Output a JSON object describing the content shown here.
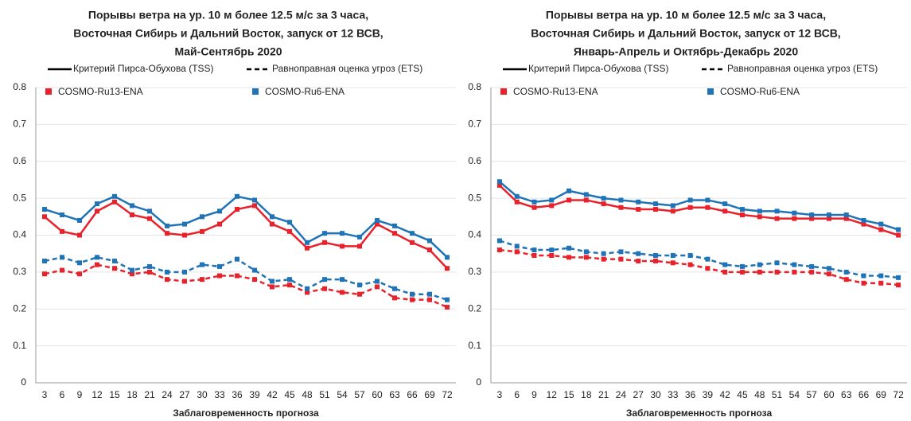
{
  "chart_data": [
    {
      "type": "line",
      "title": [
        "Порывы ветра на ур. 10 м более 12.5 м/с за 3 часа,",
        "Восточная Сибирь и Дальний Восток, запуск от 12 ВСВ,",
        "Май-Сентябрь 2020"
      ],
      "metrics": [
        "Критерий Пирса-Обухова (TSS)",
        "Равноправная оценка угроз (ETS)"
      ],
      "x_label": "Заблаговременность прогноза",
      "categories": [
        3,
        6,
        9,
        12,
        15,
        18,
        21,
        24,
        27,
        30,
        33,
        36,
        39,
        42,
        45,
        48,
        51,
        54,
        57,
        60,
        63,
        66,
        69,
        72
      ],
      "series": [
        {
          "name": "COSMO-Ru13-ENA",
          "color": "#e8212b",
          "values": [
            0.45,
            0.41,
            0.4,
            0.465,
            0.49,
            0.455,
            0.445,
            0.405,
            0.4,
            0.41,
            0.43,
            0.47,
            0.48,
            0.43,
            0.41,
            0.365,
            0.38,
            0.37,
            0.37,
            0.43,
            0.405,
            0.38,
            0.36,
            0.31
          ],
          "values_ets": [
            0.295,
            0.305,
            0.295,
            0.32,
            0.31,
            0.295,
            0.3,
            0.28,
            0.275,
            0.28,
            0.29,
            0.29,
            0.28,
            0.26,
            0.265,
            0.245,
            0.255,
            0.245,
            0.24,
            0.26,
            0.23,
            0.225,
            0.225,
            0.205
          ]
        },
        {
          "name": "COSMO-Ru6-ENA",
          "color": "#1f73b7",
          "values": [
            0.47,
            0.455,
            0.44,
            0.485,
            0.505,
            0.48,
            0.465,
            0.425,
            0.43,
            0.45,
            0.465,
            0.505,
            0.495,
            0.45,
            0.435,
            0.38,
            0.405,
            0.405,
            0.395,
            0.44,
            0.425,
            0.405,
            0.385,
            0.34
          ],
          "values_ets": [
            0.33,
            0.34,
            0.325,
            0.34,
            0.33,
            0.305,
            0.315,
            0.3,
            0.3,
            0.32,
            0.315,
            0.335,
            0.305,
            0.275,
            0.28,
            0.255,
            0.28,
            0.28,
            0.265,
            0.275,
            0.255,
            0.24,
            0.24,
            0.225
          ]
        }
      ],
      "ylim": [
        0,
        0.8
      ],
      "yticks": [
        0,
        0.1,
        0.2,
        0.3,
        0.4,
        0.5,
        0.6,
        0.7,
        0.8
      ],
      "grid": true
    },
    {
      "type": "line",
      "title": [
        "Порывы ветра на ур. 10 м более 12.5 м/с за 3 часа,",
        "Восточная Сибирь и Дальний Восток, запуск от 12 ВСВ,",
        "Январь-Апрель и Октябрь-Декабрь 2020"
      ],
      "metrics": [
        "Критерий Пирса-Обухова (TSS)",
        "Равноправная оценка угроз (ETS)"
      ],
      "x_label": "Заблаговременность прогноза",
      "categories": [
        3,
        6,
        9,
        12,
        15,
        18,
        21,
        24,
        27,
        30,
        33,
        36,
        39,
        42,
        45,
        48,
        51,
        54,
        57,
        60,
        63,
        66,
        69,
        72
      ],
      "series": [
        {
          "name": "COSMO-Ru13-ENA",
          "color": "#e8212b",
          "values": [
            0.535,
            0.49,
            0.475,
            0.48,
            0.495,
            0.495,
            0.485,
            0.475,
            0.47,
            0.47,
            0.465,
            0.475,
            0.475,
            0.465,
            0.455,
            0.45,
            0.445,
            0.445,
            0.445,
            0.445,
            0.445,
            0.43,
            0.415,
            0.4
          ],
          "values_ets": [
            0.36,
            0.355,
            0.345,
            0.345,
            0.34,
            0.34,
            0.335,
            0.335,
            0.33,
            0.33,
            0.325,
            0.32,
            0.31,
            0.3,
            0.3,
            0.3,
            0.3,
            0.3,
            0.3,
            0.295,
            0.28,
            0.27,
            0.27,
            0.265
          ]
        },
        {
          "name": "COSMO-Ru6-ENA",
          "color": "#1f73b7",
          "values": [
            0.545,
            0.505,
            0.49,
            0.495,
            0.52,
            0.51,
            0.5,
            0.495,
            0.49,
            0.485,
            0.48,
            0.495,
            0.495,
            0.485,
            0.47,
            0.465,
            0.465,
            0.46,
            0.455,
            0.455,
            0.455,
            0.44,
            0.43,
            0.415
          ],
          "values_ets": [
            0.385,
            0.37,
            0.36,
            0.36,
            0.365,
            0.355,
            0.35,
            0.355,
            0.35,
            0.345,
            0.345,
            0.345,
            0.335,
            0.32,
            0.315,
            0.32,
            0.325,
            0.32,
            0.315,
            0.31,
            0.3,
            0.29,
            0.29,
            0.285
          ]
        }
      ],
      "ylim": [
        0,
        0.8
      ],
      "yticks": [
        0,
        0.1,
        0.2,
        0.3,
        0.4,
        0.5,
        0.6,
        0.7,
        0.8
      ],
      "grid": true
    }
  ]
}
